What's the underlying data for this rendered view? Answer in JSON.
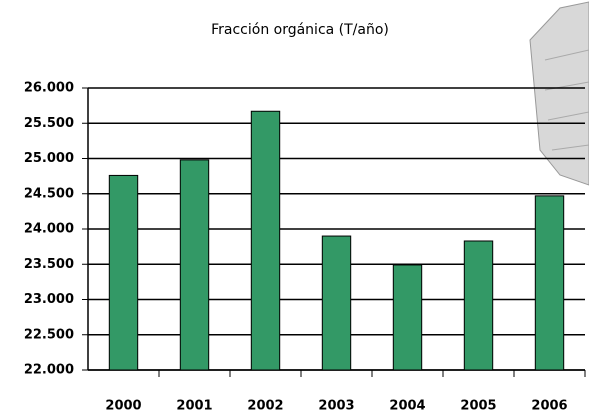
{
  "chart_data": {
    "type": "bar",
    "title": "Fracción orgánica (T/año)",
    "categories": [
      "2000",
      "2001",
      "2002",
      "2003",
      "2004",
      "2005",
      "2006"
    ],
    "values": [
      24760,
      24980,
      25670,
      23900,
      23490,
      23830,
      24470
    ],
    "color": "#339966",
    "ylim": [
      22000,
      26000
    ],
    "yticks": [
      {
        "value": 22000,
        "label": "22.000"
      },
      {
        "value": 22500,
        "label": "22.500"
      },
      {
        "value": 23000,
        "label": "23.000"
      },
      {
        "value": 23500,
        "label": "23.500"
      },
      {
        "value": 24000,
        "label": "24.000"
      },
      {
        "value": 24500,
        "label": "24.500"
      },
      {
        "value": 25000,
        "label": "25.000"
      },
      {
        "value": 25500,
        "label": "25.500"
      },
      {
        "value": 26000,
        "label": "26.000"
      }
    ],
    "grid": true
  }
}
